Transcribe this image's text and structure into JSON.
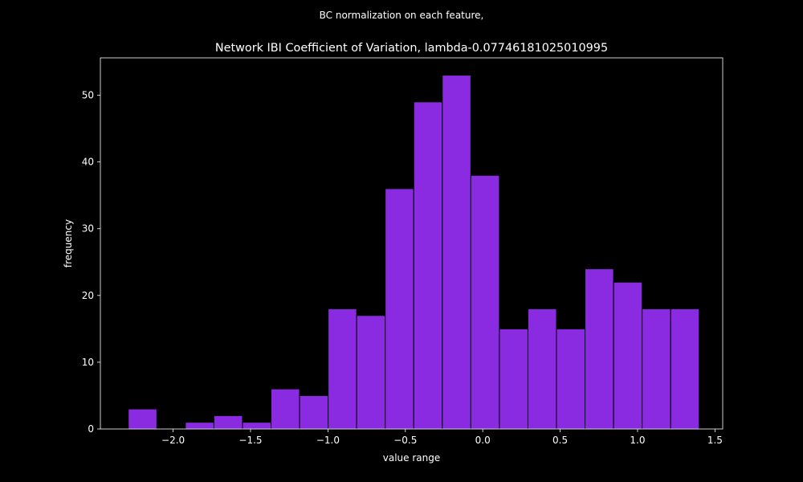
{
  "chart_data": {
    "type": "bar",
    "suptitle": "BC normalization on each feature,",
    "title": "Network IBI Coefficient of Variation, lambda-0.07746181025010995",
    "xlabel": "value range",
    "ylabel": "frequency",
    "xlim": [
      -2.47,
      1.55
    ],
    "ylim": [
      0,
      55.6
    ],
    "xticks": [
      -2.0,
      -1.5,
      -1.0,
      -0.5,
      0.0,
      0.5,
      1.0,
      1.5
    ],
    "xtick_labels": [
      "−2.0",
      "−1.5",
      "−1.0",
      "−0.5",
      "0.0",
      "0.5",
      "1.0",
      "1.5"
    ],
    "yticks": [
      0,
      10,
      20,
      30,
      40,
      50
    ],
    "ytick_labels": [
      "0",
      "10",
      "20",
      "30",
      "40",
      "50"
    ],
    "bin_edges": [
      -2.2897,
      -2.1053,
      -1.9209,
      -1.7365,
      -1.5521,
      -1.3677,
      -1.1833,
      -0.9989,
      -0.8145,
      -0.6301,
      -0.4457,
      -0.2613,
      -0.0769,
      0.1075,
      0.2919,
      0.4763,
      0.6607,
      0.8451,
      1.0295,
      1.2139,
      1.3983
    ],
    "values": [
      3,
      0,
      1,
      2,
      1,
      6,
      5,
      18,
      17,
      36,
      49,
      53,
      38,
      15,
      18,
      15,
      24,
      22,
      18,
      18
    ],
    "bar_color": "#8a2be2",
    "edge_color": "#000000",
    "background": "#000000",
    "foreground": "#ffffff",
    "grid": false,
    "legend": "none"
  }
}
